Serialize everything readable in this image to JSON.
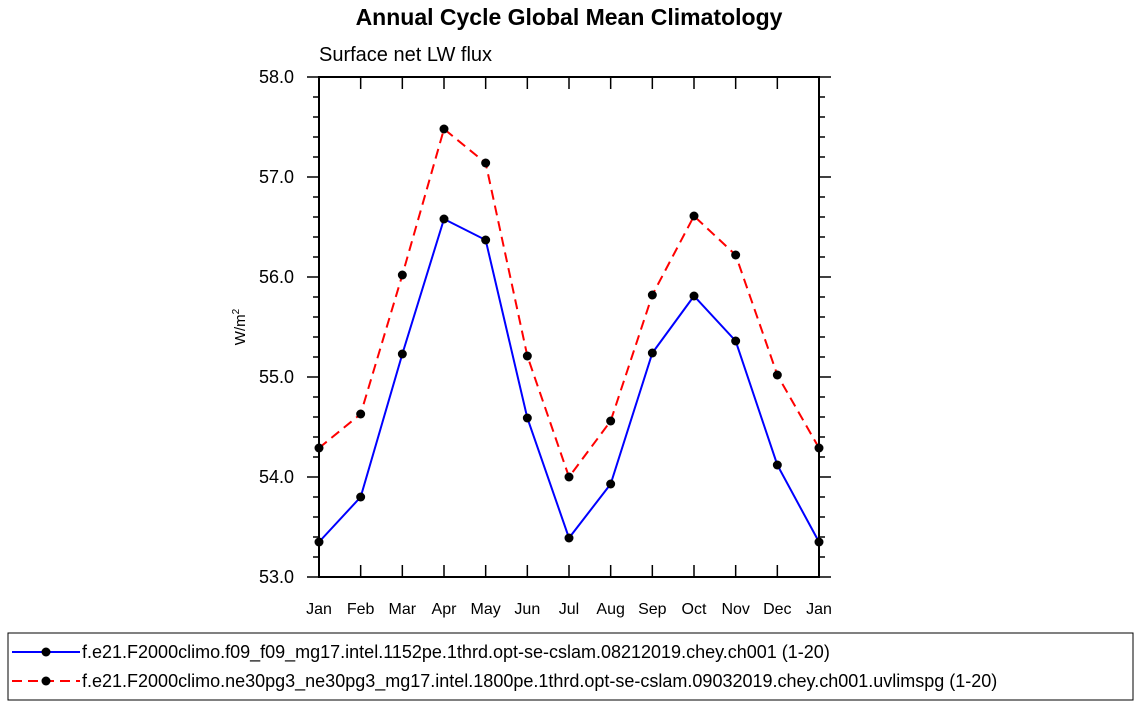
{
  "chart_data": {
    "type": "line",
    "title": "Annual Cycle Global Mean Climatology",
    "subtitle": "Surface net LW flux",
    "ylabel": "W/m",
    "ylabel_sup": "2",
    "xlabel": "",
    "categories": [
      "Jan",
      "Feb",
      "Mar",
      "Apr",
      "May",
      "Jun",
      "Jul",
      "Aug",
      "Sep",
      "Oct",
      "Nov",
      "Dec",
      "Jan"
    ],
    "ylim": [
      53.0,
      58.0
    ],
    "yticks": [
      53.0,
      54.0,
      55.0,
      56.0,
      57.0,
      58.0
    ],
    "ytick_labels": [
      "53.0",
      "54.0",
      "55.0",
      "56.0",
      "57.0",
      "58.0"
    ],
    "series": [
      {
        "name": "f.e21.F2000climo.f09_f09_mg17.intel.1152pe.1thrd.opt-se-cslam.08212019.chey.ch001 (1-20)",
        "color": "#0000ff",
        "style": "solid",
        "values": [
          53.35,
          53.8,
          55.23,
          56.58,
          56.37,
          54.59,
          53.39,
          53.93,
          55.24,
          55.81,
          55.36,
          54.12,
          53.35
        ]
      },
      {
        "name": "f.e21.F2000climo.ne30pg3_ne30pg3_mg17.intel.1800pe.1thrd.opt-se-cslam.09032019.chey.ch001.uvlimspg (1-20)",
        "color": "#ff0000",
        "style": "dashed",
        "values": [
          54.29,
          54.63,
          56.02,
          57.48,
          57.14,
          55.21,
          54.0,
          54.56,
          55.82,
          56.61,
          56.22,
          55.02,
          54.29
        ]
      }
    ],
    "legend_position": "bottom"
  }
}
